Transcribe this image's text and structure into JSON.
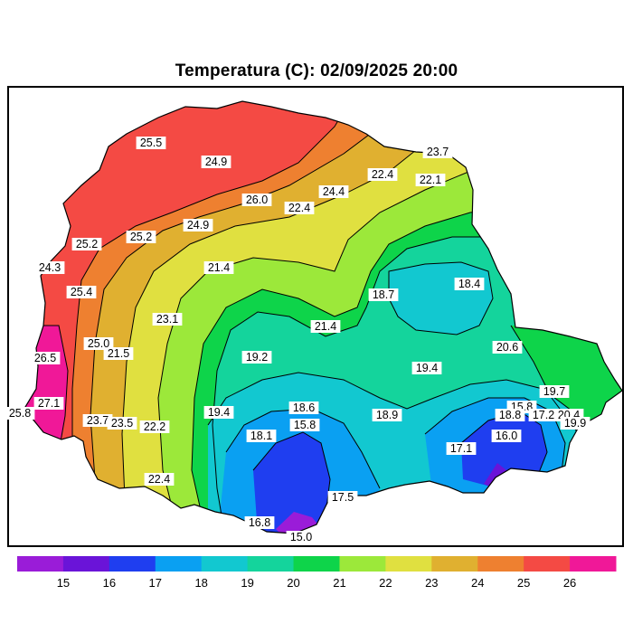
{
  "title": "Temperatura (C): 02/09/2025 20:00",
  "colorbar": {
    "segments": [
      {
        "min": 14,
        "max": 15,
        "color": "#9a1cd8"
      },
      {
        "min": 15,
        "max": 16,
        "color": "#6a14d8"
      },
      {
        "min": 16,
        "max": 17,
        "color": "#1f3ef0"
      },
      {
        "min": 17,
        "max": 18,
        "color": "#0aa0f2"
      },
      {
        "min": 18,
        "max": 19,
        "color": "#12c8d0"
      },
      {
        "min": 19,
        "max": 20,
        "color": "#14d49c"
      },
      {
        "min": 20,
        "max": 21,
        "color": "#0ed44a"
      },
      {
        "min": 21,
        "max": 22,
        "color": "#9ce83a"
      },
      {
        "min": 22,
        "max": 23,
        "color": "#e0e040"
      },
      {
        "min": 23,
        "max": 24,
        "color": "#e0b030"
      },
      {
        "min": 24,
        "max": 25,
        "color": "#ee8030"
      },
      {
        "min": 25,
        "max": 26,
        "color": "#f44a44"
      },
      {
        "min": 26,
        "max": 27,
        "color": "#f01898"
      }
    ],
    "ticks": [
      "15",
      "16",
      "17",
      "18",
      "19",
      "20",
      "21",
      "22",
      "23",
      "24",
      "25",
      "26"
    ]
  },
  "labels": [
    {
      "text": "25.5"
    },
    {
      "text": "24.9"
    },
    {
      "text": "23.7"
    },
    {
      "text": "22.4"
    },
    {
      "text": "22.1"
    },
    {
      "text": "24.4"
    },
    {
      "text": "26.0"
    },
    {
      "text": "22.4"
    },
    {
      "text": "24.9"
    },
    {
      "text": "25.2"
    },
    {
      "text": "25.2"
    },
    {
      "text": "24.3"
    },
    {
      "text": "21.4"
    },
    {
      "text": "25.4"
    },
    {
      "text": "18.7"
    },
    {
      "text": "18.4"
    },
    {
      "text": "23.1"
    },
    {
      "text": "21.4"
    },
    {
      "text": "25.0"
    },
    {
      "text": "21.5"
    },
    {
      "text": "20.6"
    },
    {
      "text": "26.5"
    },
    {
      "text": "19.2"
    },
    {
      "text": "19.4"
    },
    {
      "text": "19.7"
    },
    {
      "text": "27.1"
    },
    {
      "text": "25.8"
    },
    {
      "text": "15.8"
    },
    {
      "text": "18.6"
    },
    {
      "text": "19.4"
    },
    {
      "text": "18.9"
    },
    {
      "text": "18.8"
    },
    {
      "text": "17.2"
    },
    {
      "text": "20.4"
    },
    {
      "text": "23.7"
    },
    {
      "text": "23.5"
    },
    {
      "text": "22.2"
    },
    {
      "text": "15.8"
    },
    {
      "text": "19.9"
    },
    {
      "text": "18.1"
    },
    {
      "text": "16.0"
    },
    {
      "text": "17.1"
    },
    {
      "text": "22.4"
    },
    {
      "text": "17.5"
    },
    {
      "text": "16.8"
    },
    {
      "text": "15.0"
    }
  ]
}
